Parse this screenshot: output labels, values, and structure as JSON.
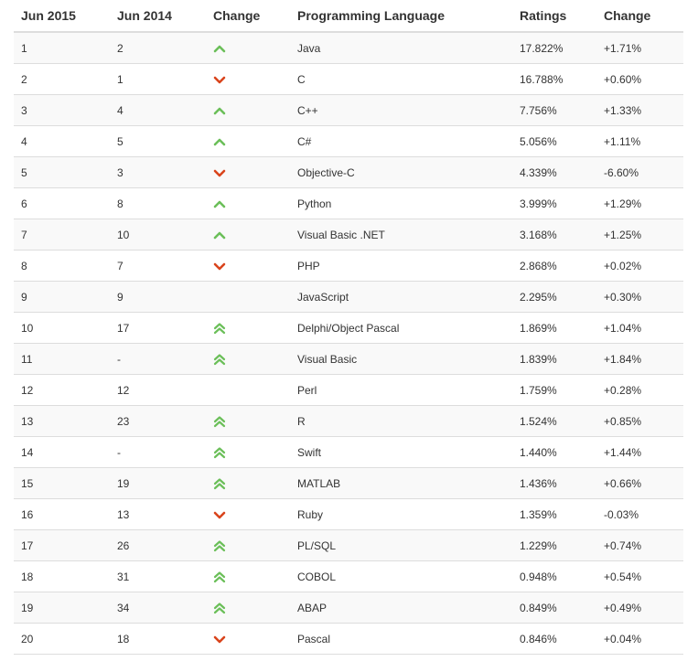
{
  "headers": [
    "Jun 2015",
    "Jun 2014",
    "Change",
    "Programming Language",
    "Ratings",
    "Change"
  ],
  "colors": {
    "up": "#6bbf59",
    "down": "#d9441c"
  },
  "rows": [
    {
      "rank2015": "1",
      "rank2014": "2",
      "trend": "up",
      "language": "Java",
      "rating": "17.822%",
      "change": "+1.71%"
    },
    {
      "rank2015": "2",
      "rank2014": "1",
      "trend": "down",
      "language": "C",
      "rating": "16.788%",
      "change": "+0.60%"
    },
    {
      "rank2015": "3",
      "rank2014": "4",
      "trend": "up",
      "language": "C++",
      "rating": "7.756%",
      "change": "+1.33%"
    },
    {
      "rank2015": "4",
      "rank2014": "5",
      "trend": "up",
      "language": "C#",
      "rating": "5.056%",
      "change": "+1.11%"
    },
    {
      "rank2015": "5",
      "rank2014": "3",
      "trend": "down",
      "language": "Objective-C",
      "rating": "4.339%",
      "change": "-6.60%"
    },
    {
      "rank2015": "6",
      "rank2014": "8",
      "trend": "up",
      "language": "Python",
      "rating": "3.999%",
      "change": "+1.29%"
    },
    {
      "rank2015": "7",
      "rank2014": "10",
      "trend": "up",
      "language": "Visual Basic .NET",
      "rating": "3.168%",
      "change": "+1.25%"
    },
    {
      "rank2015": "8",
      "rank2014": "7",
      "trend": "down",
      "language": "PHP",
      "rating": "2.868%",
      "change": "+0.02%"
    },
    {
      "rank2015": "9",
      "rank2014": "9",
      "trend": "none",
      "language": "JavaScript",
      "rating": "2.295%",
      "change": "+0.30%"
    },
    {
      "rank2015": "10",
      "rank2014": "17",
      "trend": "double-up",
      "language": "Delphi/Object Pascal",
      "rating": "1.869%",
      "change": "+1.04%"
    },
    {
      "rank2015": "11",
      "rank2014": "-",
      "trend": "double-up",
      "language": "Visual Basic",
      "rating": "1.839%",
      "change": "+1.84%"
    },
    {
      "rank2015": "12",
      "rank2014": "12",
      "trend": "none",
      "language": "Perl",
      "rating": "1.759%",
      "change": "+0.28%"
    },
    {
      "rank2015": "13",
      "rank2014": "23",
      "trend": "double-up",
      "language": "R",
      "rating": "1.524%",
      "change": "+0.85%"
    },
    {
      "rank2015": "14",
      "rank2014": "-",
      "trend": "double-up",
      "language": "Swift",
      "rating": "1.440%",
      "change": "+1.44%"
    },
    {
      "rank2015": "15",
      "rank2014": "19",
      "trend": "double-up",
      "language": "MATLAB",
      "rating": "1.436%",
      "change": "+0.66%"
    },
    {
      "rank2015": "16",
      "rank2014": "13",
      "trend": "down",
      "language": "Ruby",
      "rating": "1.359%",
      "change": "-0.03%"
    },
    {
      "rank2015": "17",
      "rank2014": "26",
      "trend": "double-up",
      "language": "PL/SQL",
      "rating": "1.229%",
      "change": "+0.74%"
    },
    {
      "rank2015": "18",
      "rank2014": "31",
      "trend": "double-up",
      "language": "COBOL",
      "rating": "0.948%",
      "change": "+0.54%"
    },
    {
      "rank2015": "19",
      "rank2014": "34",
      "trend": "double-up",
      "language": "ABAP",
      "rating": "0.849%",
      "change": "+0.49%"
    },
    {
      "rank2015": "20",
      "rank2014": "18",
      "trend": "down",
      "language": "Pascal",
      "rating": "0.846%",
      "change": "+0.04%"
    }
  ]
}
